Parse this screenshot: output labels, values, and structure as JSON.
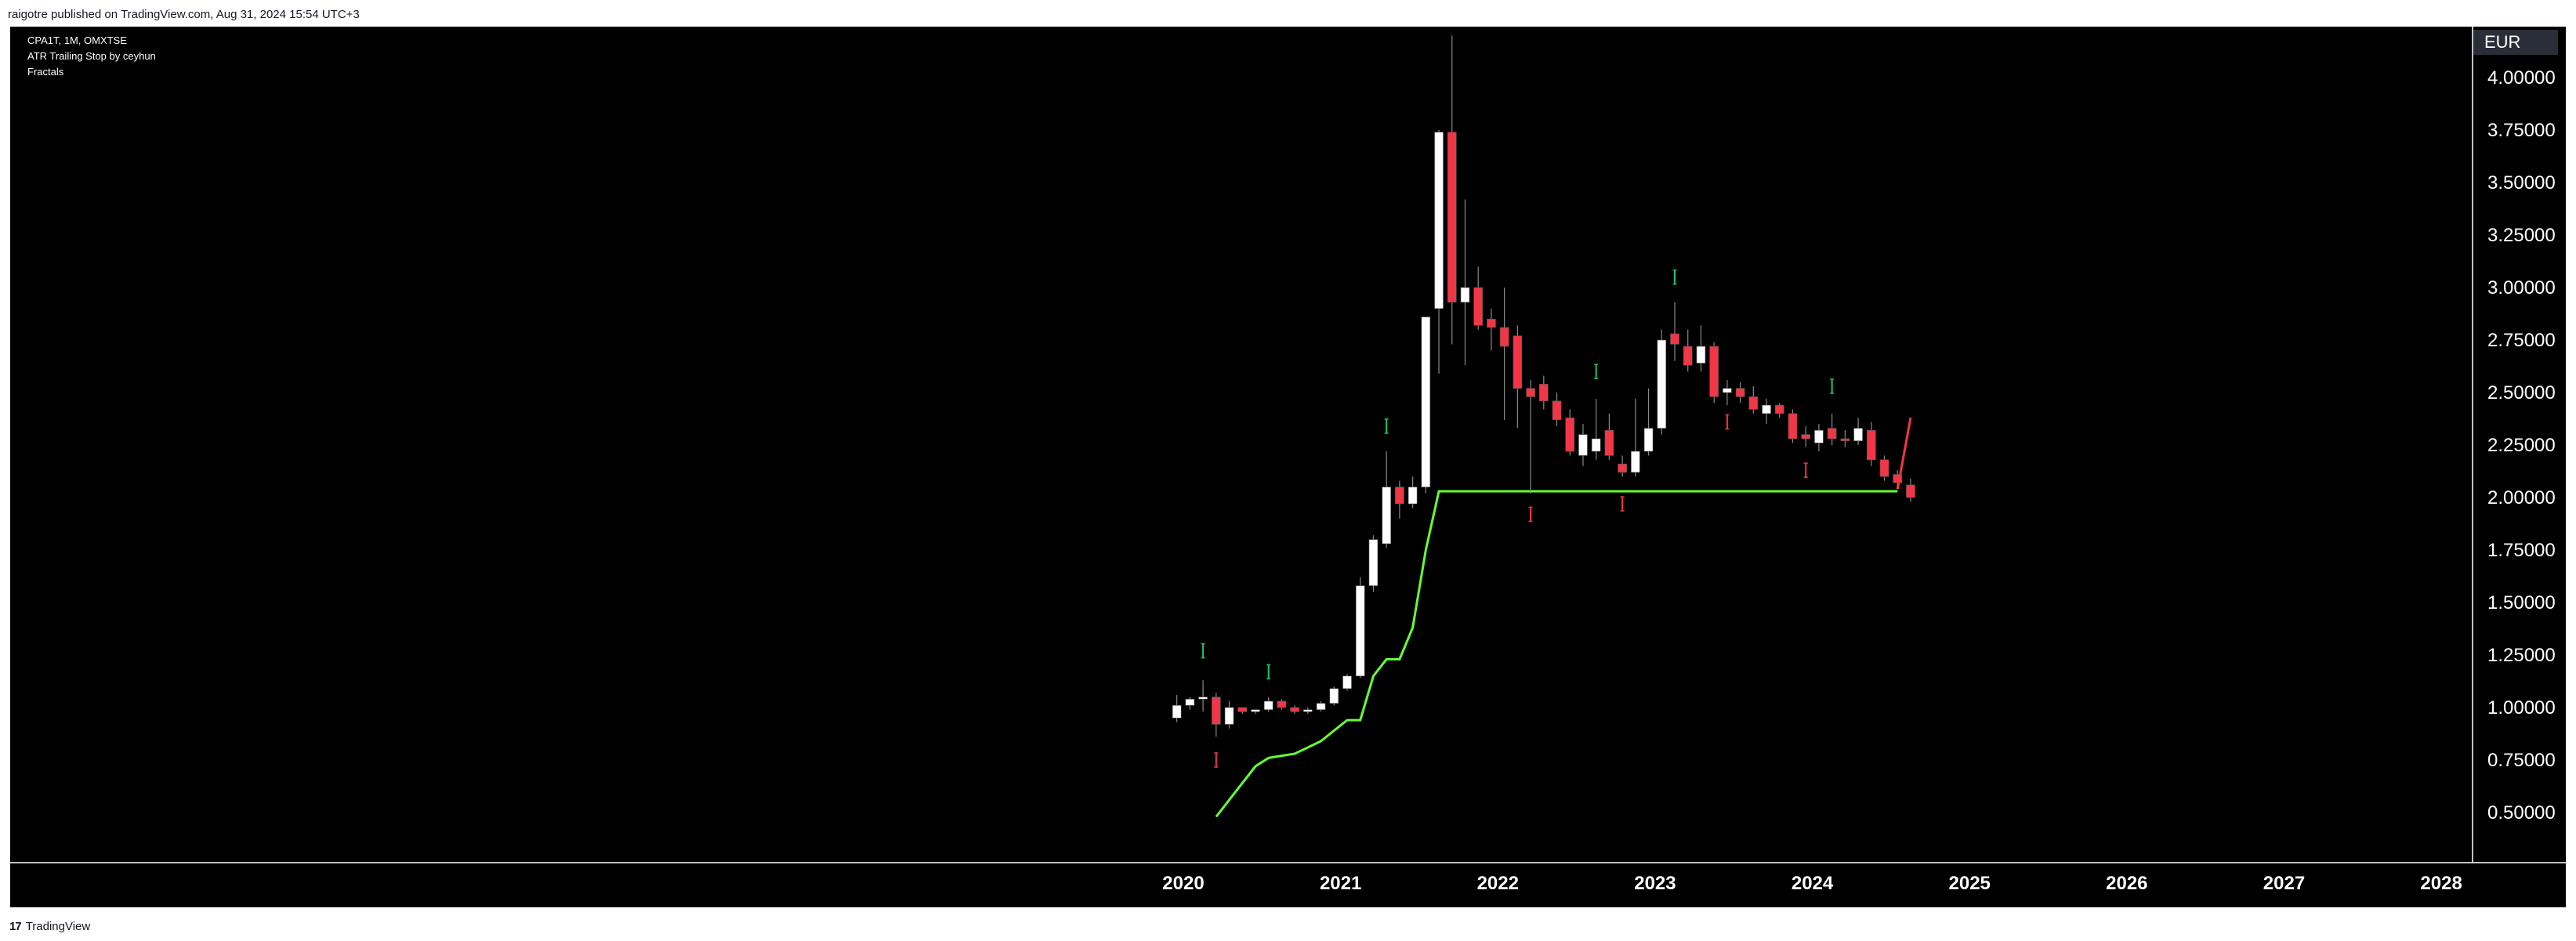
{
  "header": {
    "publisher_line": "raigotre published on TradingView.com, Aug 31, 2024 15:54 UTC+3"
  },
  "legend": {
    "symbol_line": "CPA1T, 1M, OMXTSE",
    "indicator_1": "ATR Trailing Stop by ceyhun",
    "indicator_2": "Fractals"
  },
  "price_axis": {
    "currency": "EUR"
  },
  "footer": {
    "brand": "TradingView",
    "logo_glyph": "17"
  },
  "colors": {
    "bull": "#ffffff",
    "bear": "#f23645",
    "stop_line": "#66ff33",
    "fractal_up": "#22c55e",
    "fractal_down": "#f23645",
    "axis_text": "#ffffff",
    "axis_line": "#ffffff"
  },
  "chart_data": {
    "type": "candlestick",
    "title": "CPA1T, 1M, OMXTSE",
    "ylim": [
      0.3,
      4.2
    ],
    "y_ticks": [
      "0.50000",
      "0.75000",
      "1.00000",
      "1.25000",
      "1.50000",
      "1.75000",
      "2.00000",
      "2.25000",
      "2.50000",
      "2.75000",
      "3.00000",
      "3.25000",
      "3.50000",
      "3.75000",
      "4.00000"
    ],
    "x_ticks": [
      "2020",
      "2021",
      "2022",
      "2023",
      "2024",
      "2025",
      "2026",
      "2027",
      "2028"
    ],
    "x_range": [
      "2019-01",
      "2028-07"
    ],
    "candles": [
      {
        "t": "2019-12",
        "o": 0.95,
        "h": 1.06,
        "l": 0.93,
        "c": 1.01
      },
      {
        "t": "2020-01",
        "o": 1.01,
        "h": 1.05,
        "l": 0.99,
        "c": 1.04
      },
      {
        "t": "2020-02",
        "o": 1.04,
        "h": 1.13,
        "l": 0.98,
        "c": 1.05
      },
      {
        "t": "2020-03",
        "o": 1.05,
        "h": 1.07,
        "l": 0.86,
        "c": 0.92
      },
      {
        "t": "2020-04",
        "o": 0.92,
        "h": 1.03,
        "l": 0.9,
        "c": 1.0
      },
      {
        "t": "2020-05",
        "o": 1.0,
        "h": 1.0,
        "l": 0.97,
        "c": 0.98
      },
      {
        "t": "2020-06",
        "o": 0.98,
        "h": 0.99,
        "l": 0.97,
        "c": 0.99
      },
      {
        "t": "2020-07",
        "o": 0.99,
        "h": 1.05,
        "l": 0.98,
        "c": 1.03
      },
      {
        "t": "2020-08",
        "o": 1.03,
        "h": 1.04,
        "l": 0.99,
        "c": 1.0
      },
      {
        "t": "2020-09",
        "o": 1.0,
        "h": 1.01,
        "l": 0.97,
        "c": 0.98
      },
      {
        "t": "2020-10",
        "o": 0.98,
        "h": 1.0,
        "l": 0.97,
        "c": 0.99
      },
      {
        "t": "2020-11",
        "o": 0.99,
        "h": 1.03,
        "l": 0.98,
        "c": 1.02
      },
      {
        "t": "2020-12",
        "o": 1.02,
        "h": 1.1,
        "l": 1.01,
        "c": 1.09
      },
      {
        "t": "2021-01",
        "o": 1.09,
        "h": 1.16,
        "l": 1.08,
        "c": 1.15
      },
      {
        "t": "2021-02",
        "o": 1.15,
        "h": 1.62,
        "l": 1.14,
        "c": 1.58
      },
      {
        "t": "2021-03",
        "o": 1.58,
        "h": 1.82,
        "l": 1.55,
        "c": 1.8
      },
      {
        "t": "2021-04",
        "o": 1.78,
        "h": 2.22,
        "l": 1.76,
        "c": 2.05
      },
      {
        "t": "2021-05",
        "o": 2.05,
        "h": 2.08,
        "l": 1.9,
        "c": 1.97
      },
      {
        "t": "2021-06",
        "o": 1.97,
        "h": 2.1,
        "l": 1.95,
        "c": 2.05
      },
      {
        "t": "2021-07",
        "o": 2.05,
        "h": 2.86,
        "l": 2.02,
        "c": 2.86
      },
      {
        "t": "2021-08",
        "o": 2.9,
        "h": 3.75,
        "l": 2.59,
        "c": 3.74
      },
      {
        "t": "2021-09",
        "o": 3.74,
        "h": 4.2,
        "l": 2.73,
        "c": 2.93
      },
      {
        "t": "2021-10",
        "o": 2.93,
        "h": 3.42,
        "l": 2.63,
        "c": 3.0
      },
      {
        "t": "2021-11",
        "o": 3.0,
        "h": 3.1,
        "l": 2.8,
        "c": 2.82
      },
      {
        "t": "2021-12",
        "o": 2.85,
        "h": 2.9,
        "l": 2.7,
        "c": 2.81
      },
      {
        "t": "2022-01",
        "o": 2.81,
        "h": 3.0,
        "l": 2.37,
        "c": 2.72
      },
      {
        "t": "2022-02",
        "o": 2.77,
        "h": 2.82,
        "l": 2.33,
        "c": 2.52
      },
      {
        "t": "2022-03",
        "o": 2.52,
        "h": 2.56,
        "l": 2.02,
        "c": 2.48
      },
      {
        "t": "2022-04",
        "o": 2.54,
        "h": 2.58,
        "l": 2.42,
        "c": 2.46
      },
      {
        "t": "2022-05",
        "o": 2.46,
        "h": 2.5,
        "l": 2.34,
        "c": 2.37
      },
      {
        "t": "2022-06",
        "o": 2.38,
        "h": 2.42,
        "l": 2.2,
        "c": 2.22
      },
      {
        "t": "2022-07",
        "o": 2.2,
        "h": 2.35,
        "l": 2.15,
        "c": 2.3
      },
      {
        "t": "2022-08",
        "o": 2.22,
        "h": 2.47,
        "l": 2.18,
        "c": 2.28
      },
      {
        "t": "2022-09",
        "o": 2.32,
        "h": 2.4,
        "l": 2.18,
        "c": 2.2
      },
      {
        "t": "2022-10",
        "o": 2.16,
        "h": 2.2,
        "l": 2.1,
        "c": 2.12
      },
      {
        "t": "2022-11",
        "o": 2.12,
        "h": 2.47,
        "l": 2.1,
        "c": 2.22
      },
      {
        "t": "2022-12",
        "o": 2.22,
        "h": 2.52,
        "l": 2.2,
        "c": 2.33
      },
      {
        "t": "2023-01",
        "o": 2.33,
        "h": 2.8,
        "l": 2.3,
        "c": 2.75
      },
      {
        "t": "2023-02",
        "o": 2.78,
        "h": 2.93,
        "l": 2.65,
        "c": 2.73
      },
      {
        "t": "2023-03",
        "o": 2.72,
        "h": 2.8,
        "l": 2.6,
        "c": 2.63
      },
      {
        "t": "2023-04",
        "o": 2.64,
        "h": 2.82,
        "l": 2.6,
        "c": 2.72
      },
      {
        "t": "2023-05",
        "o": 2.72,
        "h": 2.74,
        "l": 2.45,
        "c": 2.48
      },
      {
        "t": "2023-06",
        "o": 2.5,
        "h": 2.56,
        "l": 2.44,
        "c": 2.52
      },
      {
        "t": "2023-07",
        "o": 2.52,
        "h": 2.55,
        "l": 2.45,
        "c": 2.48
      },
      {
        "t": "2023-08",
        "o": 2.48,
        "h": 2.53,
        "l": 2.4,
        "c": 2.42
      },
      {
        "t": "2023-09",
        "o": 2.4,
        "h": 2.47,
        "l": 2.35,
        "c": 2.44
      },
      {
        "t": "2023-10",
        "o": 2.44,
        "h": 2.45,
        "l": 2.38,
        "c": 2.4
      },
      {
        "t": "2023-11",
        "o": 2.4,
        "h": 2.42,
        "l": 2.26,
        "c": 2.28
      },
      {
        "t": "2023-12",
        "o": 2.3,
        "h": 2.34,
        "l": 2.24,
        "c": 2.28
      },
      {
        "t": "2024-01",
        "o": 2.26,
        "h": 2.35,
        "l": 2.22,
        "c": 2.32
      },
      {
        "t": "2024-02",
        "o": 2.33,
        "h": 2.4,
        "l": 2.25,
        "c": 2.28
      },
      {
        "t": "2024-03",
        "o": 2.28,
        "h": 2.32,
        "l": 2.24,
        "c": 2.27
      },
      {
        "t": "2024-04",
        "o": 2.27,
        "h": 2.38,
        "l": 2.25,
        "c": 2.33
      },
      {
        "t": "2024-05",
        "o": 2.32,
        "h": 2.36,
        "l": 2.15,
        "c": 2.18
      },
      {
        "t": "2024-06",
        "o": 2.18,
        "h": 2.2,
        "l": 2.08,
        "c": 2.1
      },
      {
        "t": "2024-07",
        "o": 2.11,
        "h": 2.13,
        "l": 2.04,
        "c": 2.07
      },
      {
        "t": "2024-08",
        "o": 2.06,
        "h": 2.09,
        "l": 1.98,
        "c": 2.0
      }
    ],
    "atr_trailing_stop": [
      {
        "t": "2020-03",
        "v": 0.48
      },
      {
        "t": "2020-04",
        "v": 0.56
      },
      {
        "t": "2020-05",
        "v": 0.64
      },
      {
        "t": "2020-06",
        "v": 0.72
      },
      {
        "t": "2020-07",
        "v": 0.76
      },
      {
        "t": "2020-08",
        "v": 0.77
      },
      {
        "t": "2020-09",
        "v": 0.78
      },
      {
        "t": "2020-10",
        "v": 0.81
      },
      {
        "t": "2020-11",
        "v": 0.84
      },
      {
        "t": "2020-12",
        "v": 0.89
      },
      {
        "t": "2021-01",
        "v": 0.94
      },
      {
        "t": "2021-02",
        "v": 0.94
      },
      {
        "t": "2021-03",
        "v": 1.15
      },
      {
        "t": "2021-04",
        "v": 1.23
      },
      {
        "t": "2021-05",
        "v": 1.23
      },
      {
        "t": "2021-06",
        "v": 1.38
      },
      {
        "t": "2021-07",
        "v": 1.75
      },
      {
        "t": "2021-08",
        "v": 2.03
      },
      {
        "t": "2022-01",
        "v": 2.03
      },
      {
        "t": "2023-01",
        "v": 2.03
      },
      {
        "t": "2024-01",
        "v": 2.03
      },
      {
        "t": "2024-07",
        "v": 2.03
      }
    ],
    "stop_line_red": [
      {
        "t": "2024-07",
        "v": 2.04
      },
      {
        "t": "2024-08",
        "v": 2.38
      }
    ],
    "fractals_up": [
      {
        "t": "2020-02",
        "v": 1.27
      },
      {
        "t": "2020-07",
        "v": 1.17
      },
      {
        "t": "2021-04",
        "v": 2.34
      },
      {
        "t": "2022-08",
        "v": 2.6
      },
      {
        "t": "2023-02",
        "v": 3.05
      },
      {
        "t": "2024-02",
        "v": 2.53
      }
    ],
    "fractals_down": [
      {
        "t": "2020-03",
        "v": 0.75
      },
      {
        "t": "2022-03",
        "v": 1.92
      },
      {
        "t": "2022-10",
        "v": 1.97
      },
      {
        "t": "2023-06",
        "v": 2.36
      },
      {
        "t": "2023-12",
        "v": 2.13
      }
    ]
  }
}
